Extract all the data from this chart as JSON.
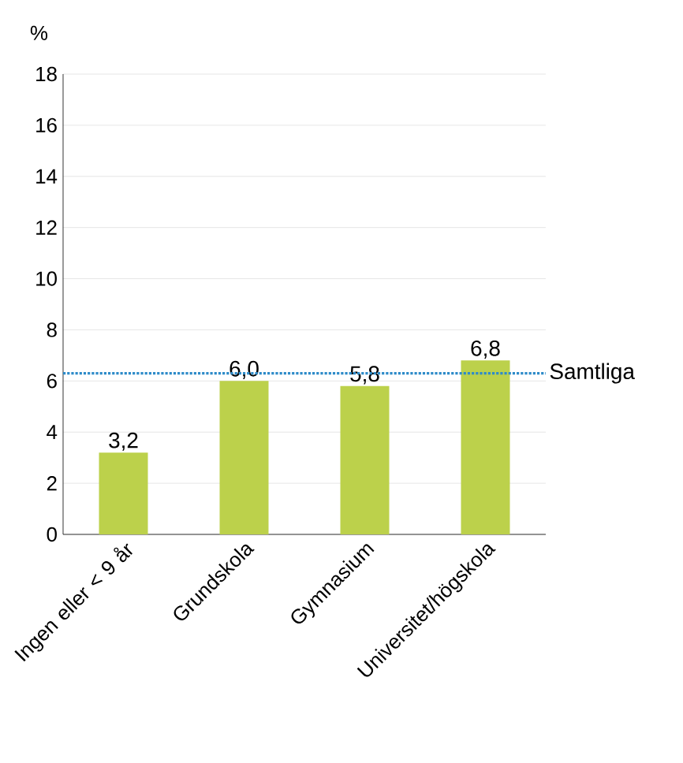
{
  "chart_data": {
    "type": "bar",
    "ylabel": "%",
    "categories": [
      "Ingen eller < 9 år",
      "Grundskola",
      "Gymnasium",
      "Universitet/högskola"
    ],
    "values": [
      3.2,
      6.0,
      5.8,
      6.8
    ],
    "value_labels": [
      "3,2",
      "6,0",
      "5,8",
      "6,8"
    ],
    "color": "#bcd14b",
    "ylim": [
      0,
      18
    ],
    "yticks": [
      0,
      2,
      4,
      6,
      8,
      10,
      12,
      14,
      16,
      18
    ],
    "grid": "y",
    "ref_lines": [
      {
        "axis": "y",
        "value": 6.3,
        "label": "Samtliga",
        "color": "#2e8bc9",
        "line_style": "dotted"
      }
    ]
  }
}
